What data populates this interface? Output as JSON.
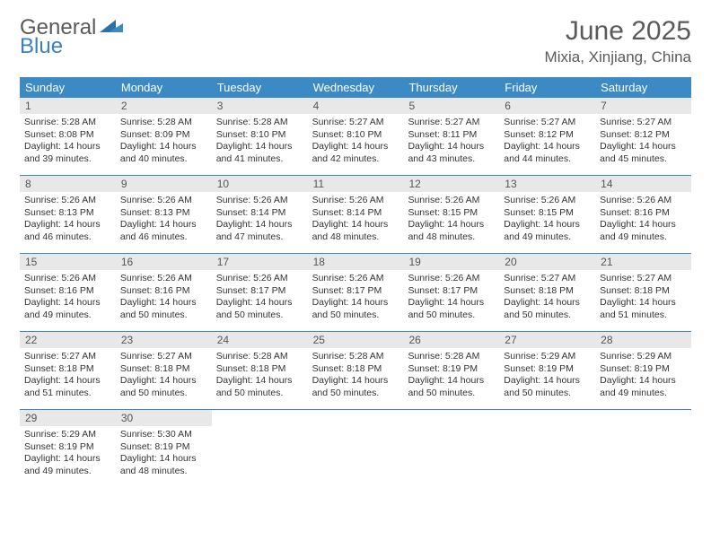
{
  "logo": {
    "text1": "General",
    "text2": "Blue"
  },
  "title": "June 2025",
  "location": "Mixia, Xinjiang, China",
  "colors": {
    "header_bg": "#3b8ac4",
    "rule": "#3b8ac4",
    "daynum_bg": "#e8e8e8"
  },
  "dow": [
    "Sunday",
    "Monday",
    "Tuesday",
    "Wednesday",
    "Thursday",
    "Friday",
    "Saturday"
  ],
  "weeks": [
    [
      {
        "n": "1",
        "sr": "5:28 AM",
        "ss": "8:08 PM",
        "dl": "14 hours and 39 minutes."
      },
      {
        "n": "2",
        "sr": "5:28 AM",
        "ss": "8:09 PM",
        "dl": "14 hours and 40 minutes."
      },
      {
        "n": "3",
        "sr": "5:28 AM",
        "ss": "8:10 PM",
        "dl": "14 hours and 41 minutes."
      },
      {
        "n": "4",
        "sr": "5:27 AM",
        "ss": "8:10 PM",
        "dl": "14 hours and 42 minutes."
      },
      {
        "n": "5",
        "sr": "5:27 AM",
        "ss": "8:11 PM",
        "dl": "14 hours and 43 minutes."
      },
      {
        "n": "6",
        "sr": "5:27 AM",
        "ss": "8:12 PM",
        "dl": "14 hours and 44 minutes."
      },
      {
        "n": "7",
        "sr": "5:27 AM",
        "ss": "8:12 PM",
        "dl": "14 hours and 45 minutes."
      }
    ],
    [
      {
        "n": "8",
        "sr": "5:26 AM",
        "ss": "8:13 PM",
        "dl": "14 hours and 46 minutes."
      },
      {
        "n": "9",
        "sr": "5:26 AM",
        "ss": "8:13 PM",
        "dl": "14 hours and 46 minutes."
      },
      {
        "n": "10",
        "sr": "5:26 AM",
        "ss": "8:14 PM",
        "dl": "14 hours and 47 minutes."
      },
      {
        "n": "11",
        "sr": "5:26 AM",
        "ss": "8:14 PM",
        "dl": "14 hours and 48 minutes."
      },
      {
        "n": "12",
        "sr": "5:26 AM",
        "ss": "8:15 PM",
        "dl": "14 hours and 48 minutes."
      },
      {
        "n": "13",
        "sr": "5:26 AM",
        "ss": "8:15 PM",
        "dl": "14 hours and 49 minutes."
      },
      {
        "n": "14",
        "sr": "5:26 AM",
        "ss": "8:16 PM",
        "dl": "14 hours and 49 minutes."
      }
    ],
    [
      {
        "n": "15",
        "sr": "5:26 AM",
        "ss": "8:16 PM",
        "dl": "14 hours and 49 minutes."
      },
      {
        "n": "16",
        "sr": "5:26 AM",
        "ss": "8:16 PM",
        "dl": "14 hours and 50 minutes."
      },
      {
        "n": "17",
        "sr": "5:26 AM",
        "ss": "8:17 PM",
        "dl": "14 hours and 50 minutes."
      },
      {
        "n": "18",
        "sr": "5:26 AM",
        "ss": "8:17 PM",
        "dl": "14 hours and 50 minutes."
      },
      {
        "n": "19",
        "sr": "5:26 AM",
        "ss": "8:17 PM",
        "dl": "14 hours and 50 minutes."
      },
      {
        "n": "20",
        "sr": "5:27 AM",
        "ss": "8:18 PM",
        "dl": "14 hours and 50 minutes."
      },
      {
        "n": "21",
        "sr": "5:27 AM",
        "ss": "8:18 PM",
        "dl": "14 hours and 51 minutes."
      }
    ],
    [
      {
        "n": "22",
        "sr": "5:27 AM",
        "ss": "8:18 PM",
        "dl": "14 hours and 51 minutes."
      },
      {
        "n": "23",
        "sr": "5:27 AM",
        "ss": "8:18 PM",
        "dl": "14 hours and 50 minutes."
      },
      {
        "n": "24",
        "sr": "5:28 AM",
        "ss": "8:18 PM",
        "dl": "14 hours and 50 minutes."
      },
      {
        "n": "25",
        "sr": "5:28 AM",
        "ss": "8:18 PM",
        "dl": "14 hours and 50 minutes."
      },
      {
        "n": "26",
        "sr": "5:28 AM",
        "ss": "8:19 PM",
        "dl": "14 hours and 50 minutes."
      },
      {
        "n": "27",
        "sr": "5:29 AM",
        "ss": "8:19 PM",
        "dl": "14 hours and 50 minutes."
      },
      {
        "n": "28",
        "sr": "5:29 AM",
        "ss": "8:19 PM",
        "dl": "14 hours and 49 minutes."
      }
    ],
    [
      {
        "n": "29",
        "sr": "5:29 AM",
        "ss": "8:19 PM",
        "dl": "14 hours and 49 minutes."
      },
      {
        "n": "30",
        "sr": "5:30 AM",
        "ss": "8:19 PM",
        "dl": "14 hours and 48 minutes."
      },
      null,
      null,
      null,
      null,
      null
    ]
  ],
  "labels": {
    "sunrise": "Sunrise: ",
    "sunset": "Sunset: ",
    "daylight": "Daylight: "
  }
}
